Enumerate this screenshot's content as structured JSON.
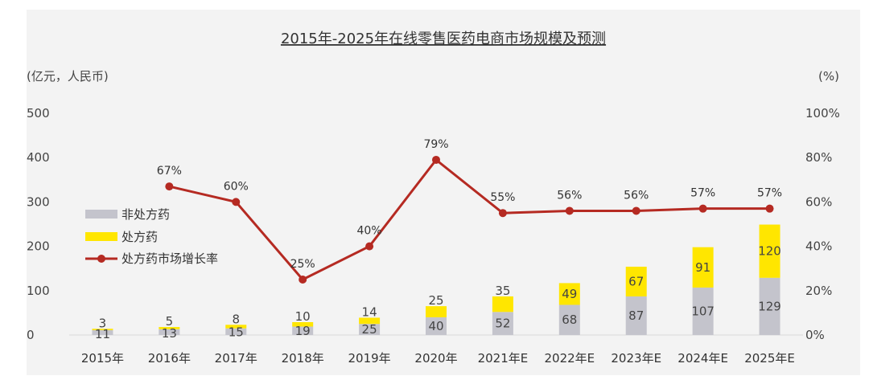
{
  "chart_data": {
    "type": "bar",
    "stacked": true,
    "title": "2015年-2025年在线零售医药电商市场规模及预测",
    "ylabel_left": "(亿元，人民币)",
    "ylabel_right": "(%)",
    "ylim_left": [
      0,
      500
    ],
    "yticks_left": [
      "0",
      "100",
      "200",
      "300",
      "400",
      "500"
    ],
    "ylim_right": [
      0,
      100
    ],
    "yticks_right": [
      "0%",
      "20%",
      "40%",
      "60%",
      "80%",
      "100%"
    ],
    "categories": [
      "2015年",
      "2016年",
      "2017年",
      "2018年",
      "2019年",
      "2020年",
      "2021年E",
      "2022年E",
      "2023年E",
      "2024年E",
      "2025年E"
    ],
    "series": [
      {
        "name": "非处方药",
        "type": "bar",
        "color": "#c4c4cc",
        "values": [
          11,
          13,
          15,
          19,
          25,
          40,
          52,
          68,
          87,
          107,
          129
        ]
      },
      {
        "name": "处方药",
        "type": "bar",
        "color": "#ffe600",
        "values": [
          3,
          5,
          8,
          10,
          14,
          25,
          35,
          49,
          67,
          91,
          120
        ]
      },
      {
        "name": "处方药市场增长率",
        "type": "line",
        "axis": "right",
        "color": "#b52a22",
        "values": [
          null,
          67,
          60,
          25,
          40,
          79,
          55,
          56,
          56,
          57,
          57
        ],
        "labels": [
          null,
          "67%",
          "60%",
          "25%",
          "40%",
          "79%",
          "55%",
          "56%",
          "56%",
          "57%",
          "57%"
        ]
      }
    ],
    "legend_position": "left"
  }
}
